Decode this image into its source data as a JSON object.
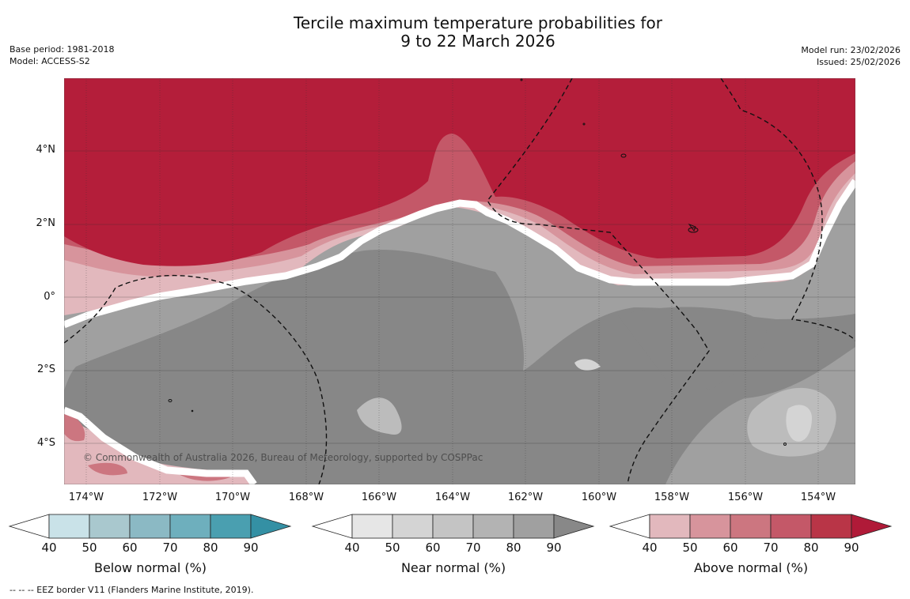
{
  "header": {
    "title_line1": "Tercile maximum temperature probabilities for",
    "title_line2": "9 to 22 March 2026",
    "base_period": "Base period: 1981-2018",
    "model": "Model: ACCESS-S2",
    "model_run": "Model run: 23/02/2026",
    "issued": "Issued: 25/02/2026"
  },
  "map": {
    "lat_labels": [
      "4°N",
      "2°N",
      "0°",
      "2°S",
      "4°S"
    ],
    "lon_labels": [
      "174°W",
      "172°W",
      "170°W",
      "168°W",
      "166°W",
      "164°W",
      "162°W",
      "160°W",
      "158°W",
      "156°W",
      "154°W"
    ],
    "copyright": "© Commonwealth of Australia 2026, Bureau of Meteorology, supported by COSPPac",
    "colors": {
      "above_saturated": "#b41e3a",
      "near_70": "#a0a0a0",
      "near_80": "#878787",
      "near_60": "#bcbcbc",
      "near_50": "#d4d4d4"
    }
  },
  "colorbars": [
    {
      "label": "Below normal (%)",
      "ticks": [
        "40",
        "50",
        "60",
        "70",
        "80",
        "90"
      ],
      "colors": [
        "#c9e2e8",
        "#a9c8ce",
        "#8bb9c4",
        "#6eafbd",
        "#4a9fb0",
        "#3490a4"
      ]
    },
    {
      "label": "Near normal (%)",
      "ticks": [
        "40",
        "50",
        "60",
        "70",
        "80",
        "90"
      ],
      "colors": [
        "#e6e6e6",
        "#d4d4d4",
        "#c4c4c4",
        "#b3b3b3",
        "#a0a0a0",
        "#888888"
      ]
    },
    {
      "label": "Above normal (%)",
      "ticks": [
        "40",
        "50",
        "60",
        "70",
        "80",
        "90"
      ],
      "colors": [
        "#e2b8bd",
        "#d7949c",
        "#cc7680",
        "#c45868",
        "#b93547",
        "#b01a38"
      ]
    }
  ],
  "footer": {
    "legend_line": "--  --  -- EEZ border V11 (Flanders Marine Institute, 2019)."
  }
}
